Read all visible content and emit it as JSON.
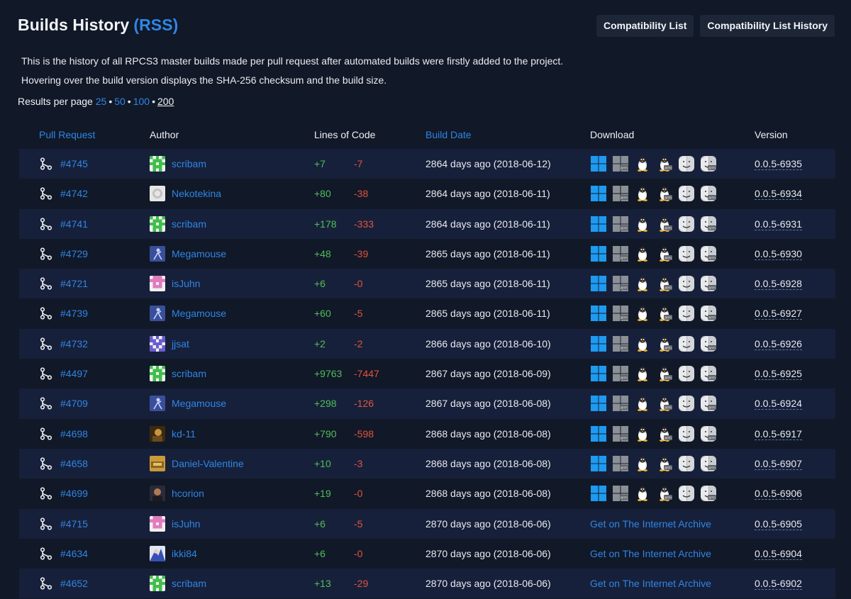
{
  "page": {
    "title": "Builds History",
    "rss_label": "(RSS)",
    "description_1": "This is the history of all RPCS3 master builds made per pull request after automated builds were firstly added to the project.",
    "description_2": "Hovering over the build version displays the SHA-256 checksum and the build size.",
    "results_per_page_label": "Results per page",
    "results_per_page_options": [
      "25",
      "50",
      "100",
      "200"
    ],
    "results_per_page_selected": "200",
    "separator": "•"
  },
  "top_buttons": {
    "compat_list": "Compatibility List",
    "compat_list_history": "Compatibility List History"
  },
  "table": {
    "headers": {
      "pull_request": "Pull Request",
      "author": "Author",
      "lines_of_code": "Lines of Code",
      "build_date": "Build Date",
      "download": "Download",
      "version": "Version"
    },
    "archive_label": "Get on The Internet Archive",
    "rows": [
      {
        "pr": "#4745",
        "author": "scribam",
        "avatar": "green-identicon",
        "plus": "+7",
        "minus": "-7",
        "date": "2864 days ago (2018-06-12)",
        "download": "icons",
        "version": "0.0.5-6935"
      },
      {
        "pr": "#4742",
        "author": "Nekotekina",
        "avatar": "github-default",
        "plus": "+80",
        "minus": "-38",
        "date": "2864 days ago (2018-06-11)",
        "download": "icons",
        "version": "0.0.5-6934"
      },
      {
        "pr": "#4741",
        "author": "scribam",
        "avatar": "green-identicon",
        "plus": "+178",
        "minus": "-333",
        "date": "2864 days ago (2018-06-11)",
        "download": "icons",
        "version": "0.0.5-6931"
      },
      {
        "pr": "#4729",
        "author": "Megamouse",
        "avatar": "blue-figure",
        "plus": "+48",
        "minus": "-39",
        "date": "2865 days ago (2018-06-11)",
        "download": "icons",
        "version": "0.0.5-6930"
      },
      {
        "pr": "#4721",
        "author": "isJuhn",
        "avatar": "pink-identicon",
        "plus": "+6",
        "minus": "-0",
        "date": "2865 days ago (2018-06-11)",
        "download": "icons",
        "version": "0.0.5-6928"
      },
      {
        "pr": "#4739",
        "author": "Megamouse",
        "avatar": "blue-figure",
        "plus": "+60",
        "minus": "-5",
        "date": "2865 days ago (2018-06-11)",
        "download": "icons",
        "version": "0.0.5-6927"
      },
      {
        "pr": "#4732",
        "author": "jjsat",
        "avatar": "purple-identicon",
        "plus": "+2",
        "minus": "-2",
        "date": "2866 days ago (2018-06-10)",
        "download": "icons",
        "version": "0.0.5-6926"
      },
      {
        "pr": "#4497",
        "author": "scribam",
        "avatar": "green-identicon",
        "plus": "+9763",
        "minus": "-7447",
        "date": "2867 days ago (2018-06-09)",
        "download": "icons",
        "version": "0.0.5-6925"
      },
      {
        "pr": "#4709",
        "author": "Megamouse",
        "avatar": "blue-figure",
        "plus": "+298",
        "minus": "-126",
        "date": "2867 days ago (2018-06-08)",
        "download": "icons",
        "version": "0.0.5-6924"
      },
      {
        "pr": "#4698",
        "author": "kd-11",
        "avatar": "photo-dark",
        "plus": "+790",
        "minus": "-598",
        "date": "2868 days ago (2018-06-08)",
        "download": "icons",
        "version": "0.0.5-6917"
      },
      {
        "pr": "#4658",
        "author": "Daniel-Valentine",
        "avatar": "photo-gold",
        "plus": "+10",
        "minus": "-3",
        "date": "2868 days ago (2018-06-08)",
        "download": "icons",
        "version": "0.0.5-6907"
      },
      {
        "pr": "#4699",
        "author": "hcorion",
        "avatar": "photo-face",
        "plus": "+19",
        "minus": "-0",
        "date": "2868 days ago (2018-06-08)",
        "download": "icons",
        "version": "0.0.5-6906"
      },
      {
        "pr": "#4715",
        "author": "isJuhn",
        "avatar": "pink-identicon",
        "plus": "+6",
        "minus": "-5",
        "date": "2870 days ago (2018-06-06)",
        "download": "archive",
        "version": "0.0.5-6905"
      },
      {
        "pr": "#4634",
        "author": "ikki84",
        "avatar": "anime-art",
        "plus": "+6",
        "minus": "-0",
        "date": "2870 days ago (2018-06-06)",
        "download": "archive",
        "version": "0.0.5-6904"
      },
      {
        "pr": "#4652",
        "author": "scribam",
        "avatar": "green-identicon",
        "plus": "+13",
        "minus": "-29",
        "date": "2870 days ago (2018-06-06)",
        "download": "archive",
        "version": "0.0.5-6902"
      }
    ]
  },
  "download_icons": [
    "windows-icon",
    "windows-arm-icon",
    "linux-icon",
    "linux-arm-icon",
    "macos-icon",
    "macos-arm-icon"
  ],
  "colors": {
    "background": "#111827",
    "row_alt": "#17203a",
    "link": "#2f86e6",
    "plus": "#4fbf5a",
    "minus": "#e2533f"
  }
}
